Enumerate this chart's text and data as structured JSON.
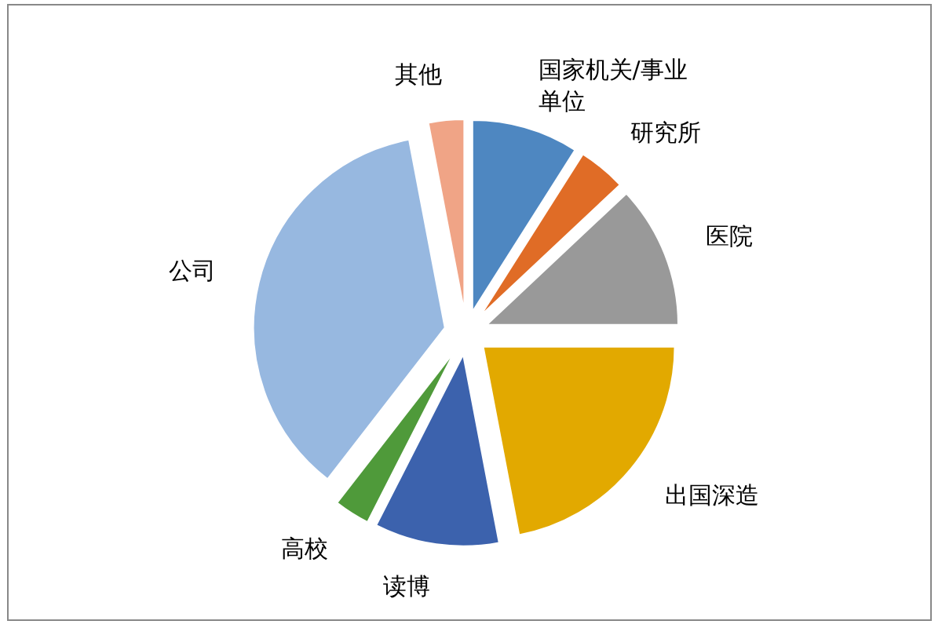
{
  "chart_data": {
    "type": "pie",
    "categories": [
      "国家机关/事业单位",
      "研究所",
      "医院",
      "出国深造",
      "读博",
      "高校",
      "公司",
      "其他"
    ],
    "values": [
      9,
      4,
      12,
      22,
      10.5,
      3,
      36.5,
      3
    ],
    "colors": [
      "#4e87c1",
      "#e06c26",
      "#999999",
      "#e2a900",
      "#3c62ad",
      "#4f9a3a",
      "#97b8e0",
      "#f0a486"
    ],
    "legend": false
  }
}
